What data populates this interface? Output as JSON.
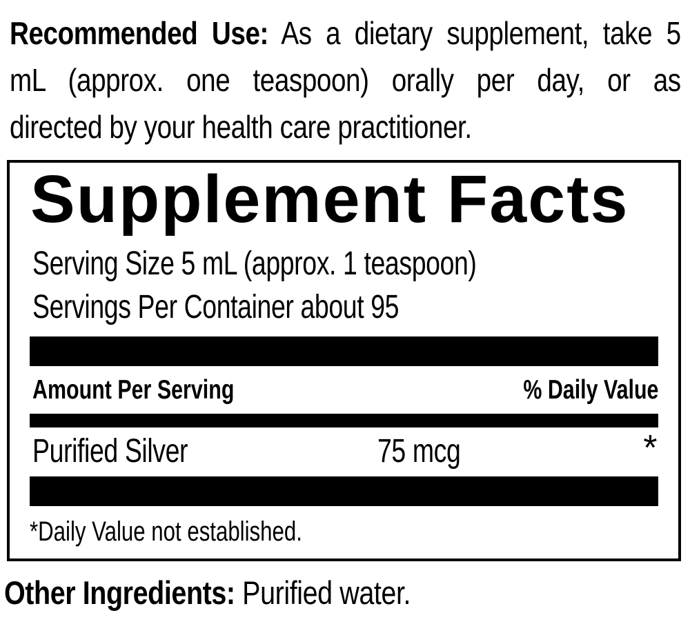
{
  "page": {
    "background_color": "#ffffff",
    "text_color": "#000000",
    "bar_color": "#000000"
  },
  "recommended_use": {
    "label": "Recommended Use:",
    "line1_rest": " As a dietary supplement, take 5",
    "line2": "mL (approx. one teaspoon) orally per day, or as",
    "line3": "directed by your health care practitioner."
  },
  "supplement_facts": {
    "title": "Supplement Facts",
    "serving_size": "Serving Size 5 mL (approx. 1 teaspoon)",
    "servings_per_container": "Servings Per Container about 95",
    "columns": {
      "amount_header": "Amount Per Serving",
      "daily_value_header": "% Daily Value"
    },
    "rows": [
      {
        "name": "Purified Silver",
        "amount": "75 mcg",
        "daily_value": "*"
      }
    ],
    "footnote": "*Daily Value not established."
  },
  "other_ingredients": {
    "label": "Other Ingredients:",
    "value": " Purified water."
  }
}
